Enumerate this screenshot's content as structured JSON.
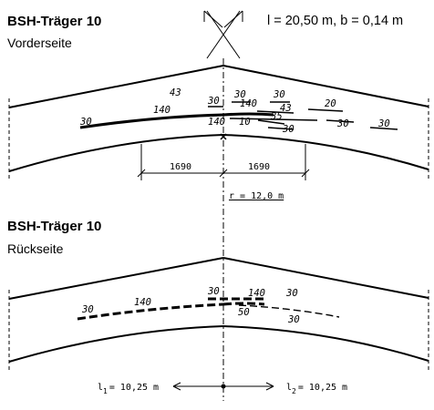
{
  "front": {
    "title": "BSH-Träger 10",
    "side": "Vorderseite",
    "dims": "l = 20,50 m, b = 0,14 m",
    "crack_labels": [
      "43",
      "30",
      "140",
      "30",
      "140",
      "30",
      "43",
      "20",
      "140",
      "10",
      "35",
      "30",
      "30",
      "30"
    ],
    "dim_left": "1690",
    "dim_right": "1690",
    "radius": "r = 12,0 m"
  },
  "back": {
    "title": "BSH-Träger 10",
    "side": "Rückseite",
    "crack_labels": [
      "30",
      "140",
      "30",
      "140",
      "30",
      "50",
      "30"
    ],
    "span_left": "l1 = 10,25 m",
    "span_left_parts": {
      "base": "l",
      "sub": "1",
      "rest": "= 10,25 m"
    },
    "span_right": "l2 = 10,25 m",
    "span_right_parts": {
      "base": "l",
      "sub": "2",
      "rest": "= 10,25 m"
    }
  }
}
